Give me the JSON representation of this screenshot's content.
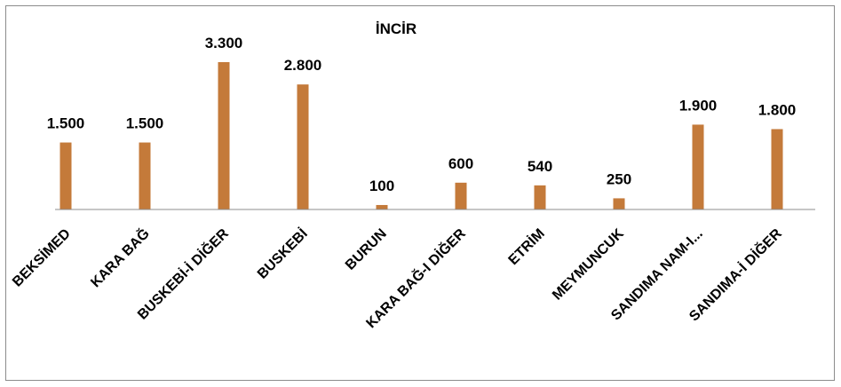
{
  "chart_data": {
    "type": "bar",
    "title": "İNCİR",
    "xlabel": "",
    "ylabel": "",
    "categories": [
      "BEKSİMED",
      "KARA BAĞ",
      "BUSKEBİ-İ DİĞER",
      "BUSKEBİ",
      "BURUN",
      "KARA BAĞ-I DİĞER",
      "ETRİM",
      "MEYMUNCUK",
      "SANDIMA NAM-I...",
      "SANDIMA-İ DİĞER"
    ],
    "values": [
      1500,
      1500,
      3300,
      2800,
      100,
      600,
      540,
      250,
      1900,
      1800
    ],
    "data_labels": [
      "1.500",
      "1.500",
      "3.300",
      "2.800",
      "100",
      "600",
      "540",
      "250",
      "1.900",
      "1.800"
    ],
    "ylim": [
      0,
      3300
    ],
    "grid": false,
    "legend": "none",
    "bar_color": "#c47a3a"
  }
}
